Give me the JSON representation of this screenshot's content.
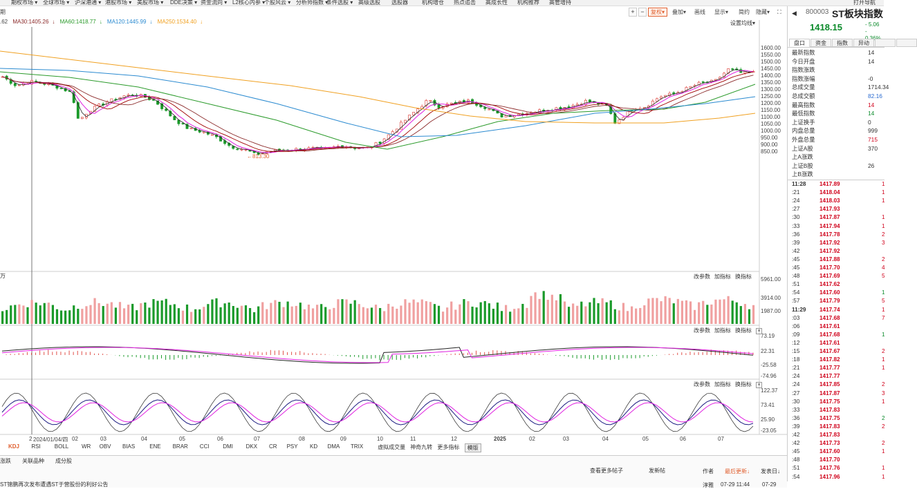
{
  "menu": {
    "items": [
      "期权市场",
      "全球市场",
      "沪深港通",
      "港股市场",
      "美股市场",
      "DDE决策",
      "资金流向",
      "L2核心内参",
      "个股风云",
      "分析师指数",
      "条件选股",
      "高级选股",
      "选股器",
      "机构增仓",
      "热点追击",
      "高成长性",
      "机构推荐",
      "高管增持"
    ],
    "right": "打开导航"
  },
  "toolbar": {
    "plus": "+",
    "minus": "−",
    "fuquan": "复权",
    "overlay": "叠加",
    "draw": "画线",
    "display": "显示",
    "simple": "简约",
    "hide": "隐藏",
    "left_label": "期"
  },
  "ma_bar": {
    "prefix": ".62",
    "ma30": "MA30:1405.26",
    "ma60": "MA60:1418.77",
    "ma120": "MA120:1445.99",
    "ma250": "MA250:1534.40",
    "settings": "设置均线"
  },
  "colors": {
    "up": "#e0504a",
    "down": "#1a9a2a",
    "ma5": "#222222",
    "ma10": "#e020e0",
    "ma20": "#a00000",
    "ma30": "#8b2a2a",
    "ma60": "#2a9a2a",
    "ma120": "#2a8ad0",
    "ma250": "#f0a020"
  },
  "price_axis": [
    "1600.00",
    "1550.00",
    "1500.00",
    "1450.00",
    "1400.00",
    "1350.00",
    "1300.00",
    "1250.00",
    "1200.00",
    "1150.00",
    "1100.00",
    "1050.00",
    "1000.00",
    "950.00",
    "900.00",
    "850.00"
  ],
  "low_label": "813.30",
  "volume": {
    "unit": "万",
    "axis": [
      "5961.00",
      "3914.00",
      "1987.00"
    ],
    "tools": [
      "改参数",
      "加指标",
      "换指标"
    ]
  },
  "macd": {
    "axis": [
      "73.19",
      "22.31",
      "-25.58",
      "-74.96"
    ],
    "tools": [
      "改参数",
      "加指标",
      "换指标"
    ]
  },
  "kdj": {
    "axis": [
      "122.37",
      "73.41",
      "25.90",
      "-23.05"
    ],
    "tools": [
      "改参数",
      "加指标",
      "换指标"
    ]
  },
  "time_axis": [
    "2024/01/04/四",
    "02",
    "03",
    "04",
    "05",
    "06",
    "07",
    "08",
    "09",
    "10",
    "11",
    "12",
    "2025",
    "02",
    "03",
    "04",
    "05",
    "06",
    "07"
  ],
  "time_axis_left": "2",
  "indicator_tabs": [
    "KDJ",
    "RSI",
    "BOLL",
    "WR",
    "OBV",
    "BIAS",
    "ENE",
    "BRAR",
    "CCI",
    "DMI",
    "DKX",
    "CR",
    "PSY",
    "KD",
    "DMA",
    "TRIX",
    "虚拟成交量",
    "神奇九转",
    "更多指标",
    "模版"
  ],
  "bottom": {
    "tabs": [
      "涨跌",
      "关联品种",
      "成分股"
    ],
    "more_posts": "查看更多帖子",
    "post": "发新帖",
    "author": "作者",
    "last_update": "最后更新↓",
    "post_date": "发表日↓",
    "headline": "ST锦鹏再次发布遭遇ST于营股份的利好公告",
    "author2": "淳雅",
    "time2": "07-29 11:44",
    "date2": "07-29"
  },
  "quote": {
    "code": "800003",
    "name": "ST板块指数",
    "price": "1418.15",
    "change": "- 5.06",
    "change_pct": "- 0.36%",
    "tabs": [
      "盘口",
      "资金",
      "指数",
      "异动",
      "",
      ""
    ],
    "rows": [
      {
        "label": "最新指数",
        "value": "14"
      },
      {
        "label": "今日开盘",
        "value": "14"
      },
      {
        "label": "指数涨跌",
        "value": ""
      },
      {
        "label": "指数涨幅",
        "value": "-0"
      },
      {
        "label": "总成交量",
        "value": "1714.34"
      },
      {
        "label": "总成交额",
        "value": "82.16"
      },
      {
        "label": "最高指数",
        "value": "14"
      },
      {
        "label": "最低指数",
        "value": "14"
      },
      {
        "label": "上证换手",
        "value": "0"
      },
      {
        "label": "内盘总量",
        "value": "999"
      },
      {
        "label": "外盘总量",
        "value": "715"
      },
      {
        "label": "上证A股",
        "value": "370"
      },
      {
        "label": "上A涨跌",
        "value": ""
      },
      {
        "label": "上证B股",
        "value": "26"
      },
      {
        "label": "上B涨跌",
        "value": ""
      }
    ]
  },
  "ticks": [
    {
      "t": "11:28",
      "p": "1417.89",
      "v": "1"
    },
    {
      "t": ":21",
      "p": "1418.04",
      "v": "1"
    },
    {
      "t": ":24",
      "p": "1418.03",
      "v": "1"
    },
    {
      "t": ":27",
      "p": "1417.93",
      "v": ""
    },
    {
      "t": ":30",
      "p": "1417.87",
      "v": "1"
    },
    {
      "t": ":33",
      "p": "1417.94",
      "v": "1"
    },
    {
      "t": ":36",
      "p": "1417.78",
      "v": "2"
    },
    {
      "t": ":39",
      "p": "1417.92",
      "v": "3"
    },
    {
      "t": ":42",
      "p": "1417.92",
      "v": ""
    },
    {
      "t": ":45",
      "p": "1417.88",
      "v": "2"
    },
    {
      "t": ":45",
      "p": "1417.70",
      "v": "4"
    },
    {
      "t": ":48",
      "p": "1417.69",
      "v": "5"
    },
    {
      "t": ":51",
      "p": "1417.62",
      "v": ""
    },
    {
      "t": ":54",
      "p": "1417.60",
      "v": "1"
    },
    {
      "t": ":57",
      "p": "1417.79",
      "v": "5"
    },
    {
      "t": "11:29",
      "p": "1417.74",
      "v": "1"
    },
    {
      "t": ":03",
      "p": "1417.68",
      "v": "7"
    },
    {
      "t": ":06",
      "p": "1417.61",
      "v": ""
    },
    {
      "t": ":09",
      "p": "1417.68",
      "v": "1"
    },
    {
      "t": ":12",
      "p": "1417.61",
      "v": ""
    },
    {
      "t": ":15",
      "p": "1417.67",
      "v": "2"
    },
    {
      "t": ":18",
      "p": "1417.82",
      "v": "1"
    },
    {
      "t": ":21",
      "p": "1417.77",
      "v": "1"
    },
    {
      "t": ":24",
      "p": "1417.77",
      "v": ""
    },
    {
      "t": ":24",
      "p": "1417.85",
      "v": "2"
    },
    {
      "t": ":27",
      "p": "1417.87",
      "v": "3"
    },
    {
      "t": ":30",
      "p": "1417.75",
      "v": "1"
    },
    {
      "t": ":33",
      "p": "1417.83",
      "v": ""
    },
    {
      "t": ":36",
      "p": "1417.75",
      "v": "2"
    },
    {
      "t": ":39",
      "p": "1417.83",
      "v": "2"
    },
    {
      "t": ":42",
      "p": "1417.83",
      "v": ""
    },
    {
      "t": ":42",
      "p": "1417.73",
      "v": "2"
    },
    {
      "t": ":45",
      "p": "1417.60",
      "v": "1"
    },
    {
      "t": ":48",
      "p": "1417.70",
      "v": ""
    },
    {
      "t": ":51",
      "p": "1417.76",
      "v": "1"
    },
    {
      "t": ":54",
      "p": "1417.96",
      "v": "1"
    }
  ]
}
